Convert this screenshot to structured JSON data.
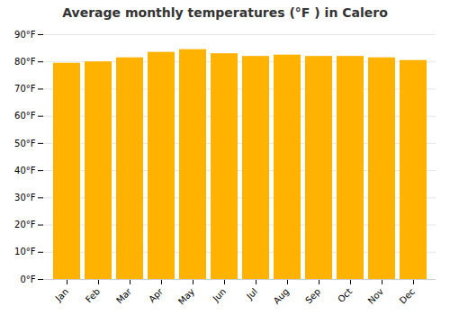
{
  "chart_data": {
    "type": "bar",
    "title": "Average monthly temperatures (°F ) in Calero",
    "categories": [
      "Jan",
      "Feb",
      "Mar",
      "Apr",
      "May",
      "Jun",
      "Jul",
      "Aug",
      "Sep",
      "Oct",
      "Nov",
      "Dec"
    ],
    "values": [
      79.5,
      80.0,
      81.5,
      83.5,
      84.5,
      83.0,
      82.0,
      82.5,
      82.0,
      82.0,
      81.5,
      80.5
    ],
    "color": "#FFB300",
    "ylim": [
      0,
      90
    ],
    "yticks": [
      {
        "value": 0,
        "label": "0°F"
      },
      {
        "value": 10,
        "label": "10°F"
      },
      {
        "value": 20,
        "label": "20°F"
      },
      {
        "value": 30,
        "label": "30°F"
      },
      {
        "value": 40,
        "label": "40°F"
      },
      {
        "value": 50,
        "label": "50°F"
      },
      {
        "value": 60,
        "label": "60°F"
      },
      {
        "value": 70,
        "label": "70°F"
      },
      {
        "value": 80,
        "label": "80°F"
      },
      {
        "value": 90,
        "label": "90°F"
      }
    ],
    "grid": true
  }
}
